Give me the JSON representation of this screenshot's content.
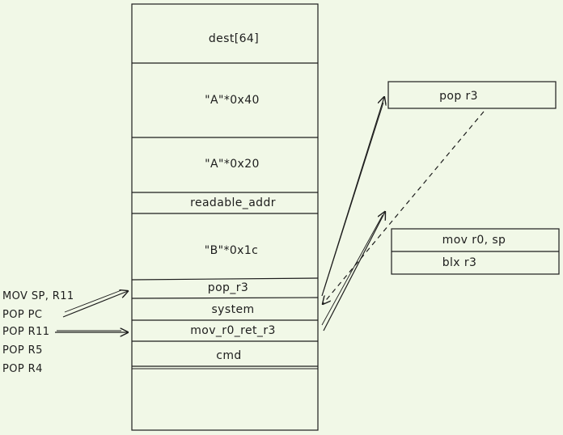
{
  "stack": {
    "cells": [
      {
        "label": "dest[64]"
      },
      {
        "label": "\"A\"*0x40"
      },
      {
        "label": "\"A\"*0x20"
      },
      {
        "label": "readable_addr"
      },
      {
        "label": "\"B\"*0x1c"
      },
      {
        "label": "pop_r3"
      },
      {
        "label": "system"
      },
      {
        "label": "mov_r0_ret_r3"
      },
      {
        "label": "cmd"
      }
    ]
  },
  "gadget_pop": {
    "label": "pop r3"
  },
  "gadget_mov": {
    "lines": [
      {
        "label": "mov r0, sp"
      },
      {
        "label": "blx r3"
      }
    ]
  },
  "instructions": [
    {
      "label": "MOV SP, R11"
    },
    {
      "label": "POP PC"
    },
    {
      "label": "POP R11"
    },
    {
      "label": "POP R5"
    },
    {
      "label": "POP R4"
    }
  ],
  "colors": {
    "background": "#f1f8e7",
    "ink": "#1d1d1d"
  }
}
